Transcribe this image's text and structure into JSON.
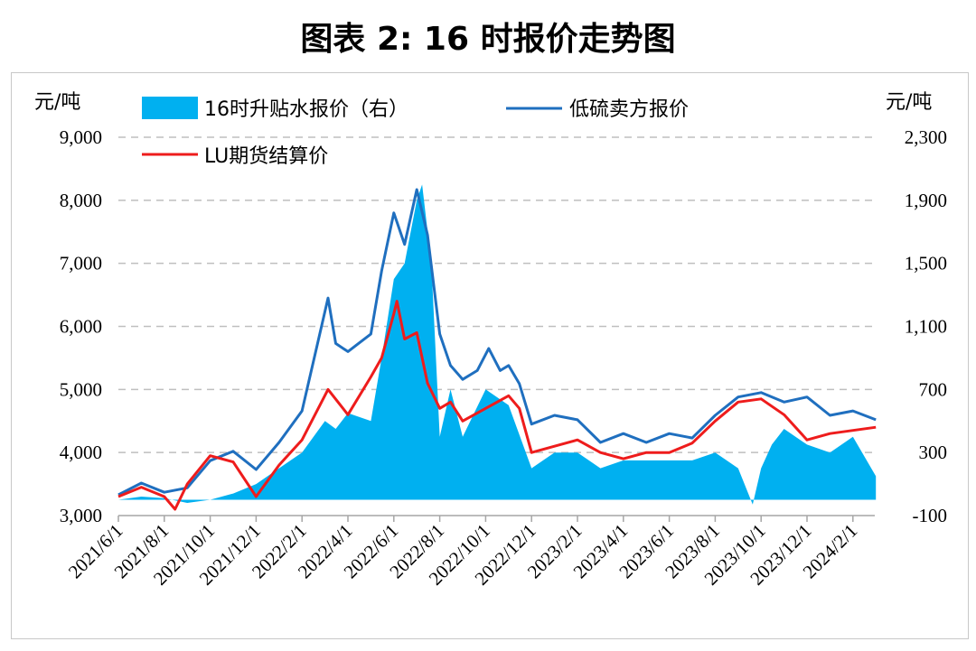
{
  "title": "图表 2:  16 时报价走势图",
  "chart_data": {
    "type": "line",
    "left_unit": "元/吨",
    "right_unit": "元/吨",
    "ylim_left": [
      3000,
      9000
    ],
    "ylim_right": [
      -100,
      2300
    ],
    "left_ticks": [
      "9,000",
      "8,000",
      "7,000",
      "6,000",
      "5,000",
      "4,000",
      "3,000"
    ],
    "right_ticks": [
      "2,300",
      "1,900",
      "1,500",
      "1,100",
      "700",
      "300",
      "-100"
    ],
    "x_ticks": [
      "2021/6/1",
      "2021/8/1",
      "2021/10/1",
      "2021/12/1",
      "2022/2/1",
      "2022/4/1",
      "2022/6/1",
      "2022/8/1",
      "2022/10/1",
      "2022/12/1",
      "2023/2/1",
      "2023/4/1",
      "2023/6/1",
      "2023/8/1",
      "2023/10/1",
      "2023/12/1",
      "2024/2/1"
    ],
    "grid": "horizontal dashed",
    "legend_placement": "top-left",
    "series": [
      {
        "name": "16时升贴水报价（右）",
        "type": "area",
        "axis": "right",
        "color": "#00b0f0",
        "points": [
          [
            "2021-06-01",
            0
          ],
          [
            "2021-07-01",
            20
          ],
          [
            "2021-08-01",
            10
          ],
          [
            "2021-09-01",
            -20
          ],
          [
            "2021-10-01",
            0
          ],
          [
            "2021-11-01",
            40
          ],
          [
            "2021-12-01",
            100
          ],
          [
            "2022-01-01",
            200
          ],
          [
            "2022-02-01",
            300
          ],
          [
            "2022-03-01",
            500
          ],
          [
            "2022-03-15",
            450
          ],
          [
            "2022-04-01",
            550
          ],
          [
            "2022-05-01",
            500
          ],
          [
            "2022-05-15",
            900
          ],
          [
            "2022-06-01",
            1400
          ],
          [
            "2022-06-15",
            1500
          ],
          [
            "2022-07-01",
            1900
          ],
          [
            "2022-07-08",
            2000
          ],
          [
            "2022-07-20",
            1500
          ],
          [
            "2022-08-01",
            400
          ],
          [
            "2022-08-15",
            700
          ],
          [
            "2022-09-01",
            400
          ],
          [
            "2022-10-01",
            700
          ],
          [
            "2022-11-01",
            600
          ],
          [
            "2022-12-01",
            200
          ],
          [
            "2023-01-01",
            300
          ],
          [
            "2023-02-01",
            300
          ],
          [
            "2023-03-01",
            200
          ],
          [
            "2023-04-01",
            250
          ],
          [
            "2023-05-01",
            250
          ],
          [
            "2023-06-01",
            250
          ],
          [
            "2023-07-01",
            250
          ],
          [
            "2023-08-01",
            300
          ],
          [
            "2023-09-01",
            200
          ],
          [
            "2023-09-20",
            -30
          ],
          [
            "2023-10-01",
            200
          ],
          [
            "2023-10-15",
            350
          ],
          [
            "2023-11-01",
            450
          ],
          [
            "2023-12-01",
            350
          ],
          [
            "2024-01-01",
            300
          ],
          [
            "2024-02-01",
            400
          ],
          [
            "2024-03-01",
            150
          ]
        ]
      },
      {
        "name": "低硫卖方报价",
        "type": "line",
        "axis": "left",
        "color": "#1f6fbf",
        "points": [
          [
            "2021-06-01",
            3330
          ],
          [
            "2021-07-01",
            3515
          ],
          [
            "2021-08-01",
            3370
          ],
          [
            "2021-09-01",
            3440
          ],
          [
            "2021-10-01",
            3870
          ],
          [
            "2021-11-01",
            4020
          ],
          [
            "2021-12-01",
            3730
          ],
          [
            "2022-01-01",
            4160
          ],
          [
            "2022-02-01",
            4660
          ],
          [
            "2022-03-05",
            6450
          ],
          [
            "2022-03-15",
            5730
          ],
          [
            "2022-04-01",
            5600
          ],
          [
            "2022-05-01",
            5880
          ],
          [
            "2022-05-15",
            6880
          ],
          [
            "2022-06-01",
            7800
          ],
          [
            "2022-06-15",
            7300
          ],
          [
            "2022-07-01",
            8170
          ],
          [
            "2022-07-15",
            7450
          ],
          [
            "2022-08-01",
            5880
          ],
          [
            "2022-08-15",
            5380
          ],
          [
            "2022-09-01",
            5160
          ],
          [
            "2022-09-20",
            5300
          ],
          [
            "2022-10-05",
            5650
          ],
          [
            "2022-10-20",
            5300
          ],
          [
            "2022-11-01",
            5380
          ],
          [
            "2022-11-15",
            5090
          ],
          [
            "2022-12-01",
            4450
          ],
          [
            "2023-01-01",
            4590
          ],
          [
            "2023-02-01",
            4520
          ],
          [
            "2023-03-01",
            4160
          ],
          [
            "2023-04-01",
            4300
          ],
          [
            "2023-05-01",
            4160
          ],
          [
            "2023-06-01",
            4300
          ],
          [
            "2023-07-01",
            4230
          ],
          [
            "2023-08-01",
            4590
          ],
          [
            "2023-09-01",
            4880
          ],
          [
            "2023-10-01",
            4950
          ],
          [
            "2023-11-01",
            4800
          ],
          [
            "2023-12-01",
            4880
          ],
          [
            "2024-01-01",
            4590
          ],
          [
            "2024-02-01",
            4660
          ],
          [
            "2024-03-01",
            4520
          ]
        ]
      },
      {
        "name": "LU期货结算价",
        "type": "line",
        "axis": "left",
        "color": "#ee1c1c",
        "points": [
          [
            "2021-06-01",
            3300
          ],
          [
            "2021-07-01",
            3450
          ],
          [
            "2021-08-01",
            3300
          ],
          [
            "2021-08-15",
            3100
          ],
          [
            "2021-09-01",
            3500
          ],
          [
            "2021-10-01",
            3950
          ],
          [
            "2021-11-01",
            3850
          ],
          [
            "2021-12-01",
            3300
          ],
          [
            "2022-01-01",
            3800
          ],
          [
            "2022-02-01",
            4200
          ],
          [
            "2022-03-05",
            5000
          ],
          [
            "2022-04-01",
            4600
          ],
          [
            "2022-05-01",
            5200
          ],
          [
            "2022-05-15",
            5500
          ],
          [
            "2022-06-01",
            6200
          ],
          [
            "2022-06-05",
            6400
          ],
          [
            "2022-06-15",
            5800
          ],
          [
            "2022-07-01",
            5900
          ],
          [
            "2022-07-15",
            5100
          ],
          [
            "2022-08-01",
            4700
          ],
          [
            "2022-08-15",
            4800
          ],
          [
            "2022-09-01",
            4500
          ],
          [
            "2022-10-01",
            4700
          ],
          [
            "2022-11-01",
            4900
          ],
          [
            "2022-11-15",
            4700
          ],
          [
            "2022-12-01",
            4000
          ],
          [
            "2023-01-01",
            4100
          ],
          [
            "2023-02-01",
            4200
          ],
          [
            "2023-03-01",
            4000
          ],
          [
            "2023-04-01",
            3900
          ],
          [
            "2023-05-01",
            4000
          ],
          [
            "2023-06-01",
            4000
          ],
          [
            "2023-07-01",
            4150
          ],
          [
            "2023-08-01",
            4500
          ],
          [
            "2023-09-01",
            4800
          ],
          [
            "2023-10-01",
            4850
          ],
          [
            "2023-11-01",
            4600
          ],
          [
            "2023-12-01",
            4200
          ],
          [
            "2024-01-01",
            4300
          ],
          [
            "2024-02-01",
            4350
          ],
          [
            "2024-03-01",
            4400
          ]
        ]
      }
    ]
  }
}
